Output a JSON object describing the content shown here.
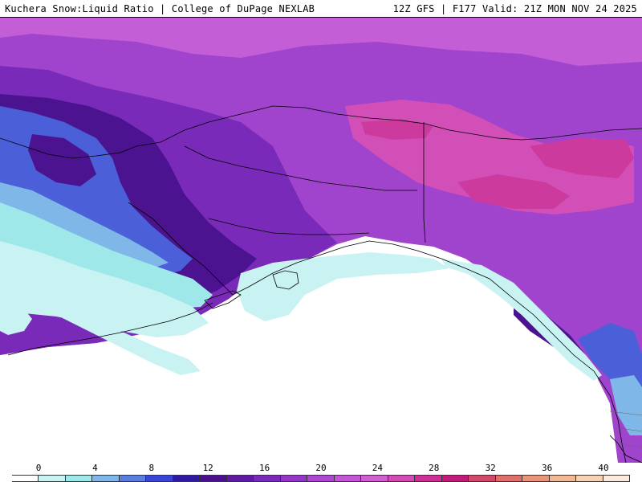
{
  "header": {
    "left_title": "Kuchera Snow:Liquid Ratio | College of DuPage NEXLAB",
    "right_title": "12Z GFS | F177 Valid: 21Z MON NOV 24 2025"
  },
  "legend": {
    "tick_labels": [
      "0",
      "4",
      "8",
      "12",
      "16",
      "20",
      "24",
      "28",
      "32",
      "36",
      "40"
    ],
    "colors": [
      "#ffffff",
      "#c9f3f2",
      "#9fe8ea",
      "#7fb8e8",
      "#5a7ee0",
      "#3a44d6",
      "#2d1aa0",
      "#4a0f8c",
      "#5e1aa0",
      "#7a2ab8",
      "#9436c6",
      "#ad46d0",
      "#c256d4",
      "#d060d0",
      "#d34cb6",
      "#cc3096",
      "#c21a7a",
      "#d24a6a",
      "#de6f6a",
      "#e89478",
      "#f0b894",
      "#f6d2b4",
      "#faeadc"
    ]
  },
  "map": {
    "colors": {
      "ocean": "#ffffff",
      "pale_cyan": "#c9f3f2",
      "cyan": "#9fe8ea",
      "light_blue": "#7fb8e8",
      "blue": "#4a5fd8",
      "deep_purple": "#4b138f",
      "purple": "#7a2ab8",
      "violet": "#a043cd",
      "orchid": "#c45ed6",
      "magenta": "#d24fb8",
      "pink": "#cc3a9e",
      "coast": "#000000"
    }
  }
}
